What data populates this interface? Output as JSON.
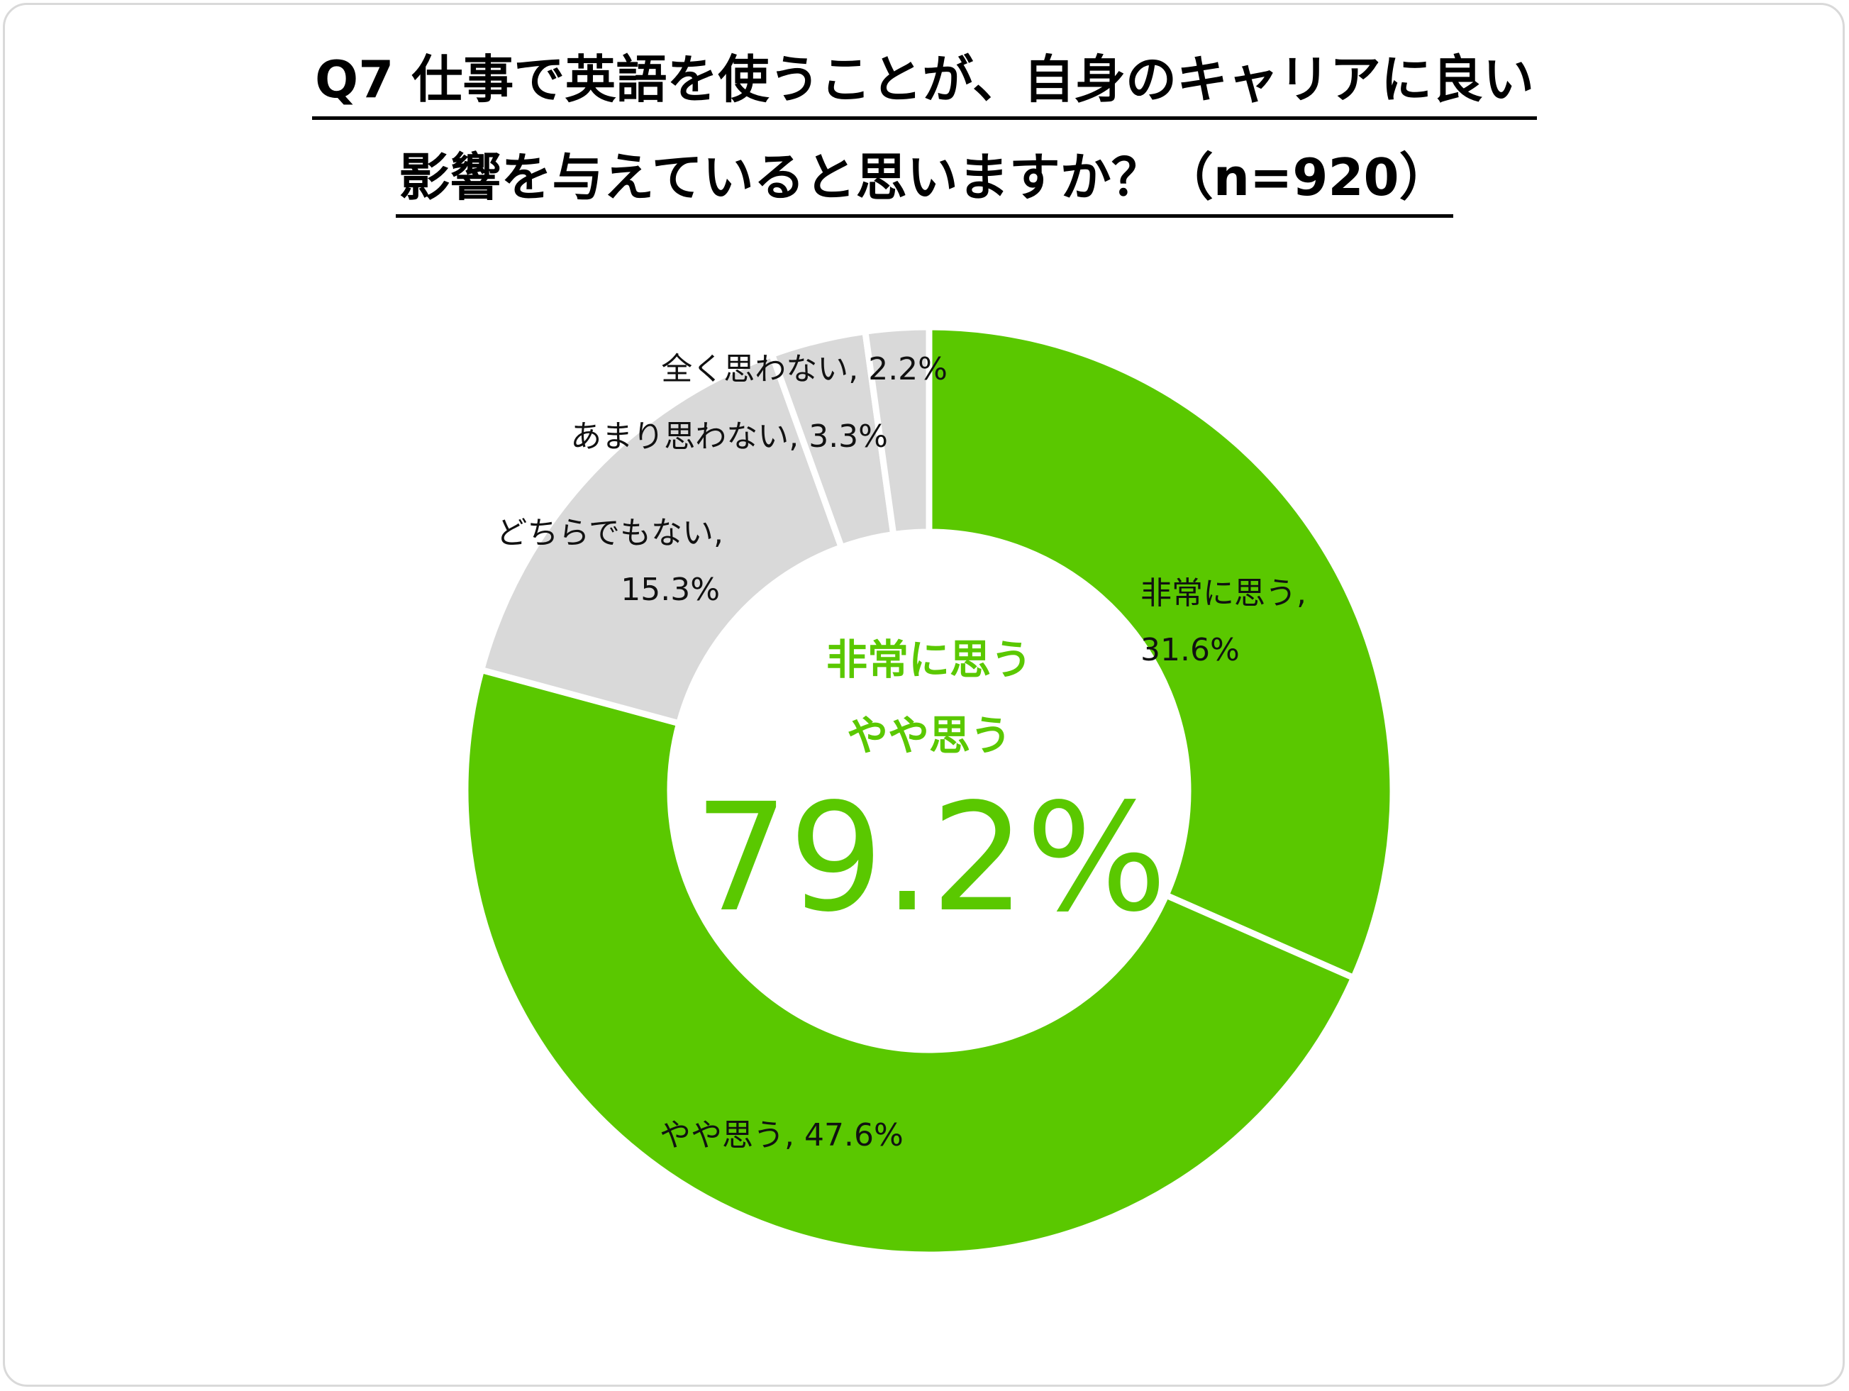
{
  "title": {
    "line1": "Q7 仕事で英語を使うことが、自身のキャリアに良い",
    "line2": "影響を与えていると思いますか？（n=920）"
  },
  "colors": {
    "positive": "#5ac800",
    "neutral": "#d9d9d9",
    "separator": "#ffffff"
  },
  "center": {
    "line1": "非常に思う",
    "line2": "やや思う",
    "value": "79.2%"
  },
  "chart_data": {
    "type": "pie",
    "variant": "donut",
    "title": "Q7 仕事で英語を使うことが、自身のキャリアに良い影響を与えていると思いますか？（n=920）",
    "categories": [
      "非常に思う",
      "やや思う",
      "どちらでもない",
      "あまり思わない",
      "全く思わない"
    ],
    "values": [
      31.6,
      47.6,
      15.3,
      3.3,
      2.2
    ],
    "unit": "%",
    "slice_colors": [
      "#5ac800",
      "#5ac800",
      "#d9d9d9",
      "#d9d9d9",
      "#d9d9d9"
    ],
    "data_labels": [
      {
        "name": "非常に思う,",
        "value": "31.6%"
      },
      {
        "name": "やや思う,",
        "value": "47.6%"
      },
      {
        "name": "どちらでもない,",
        "value": "15.3%"
      },
      {
        "name": "あまり思わない,",
        "value": "3.3%"
      },
      {
        "name": "全く思わない,",
        "value": "2.2%"
      }
    ],
    "start": "12 o'clock",
    "direction": "clockwise"
  }
}
